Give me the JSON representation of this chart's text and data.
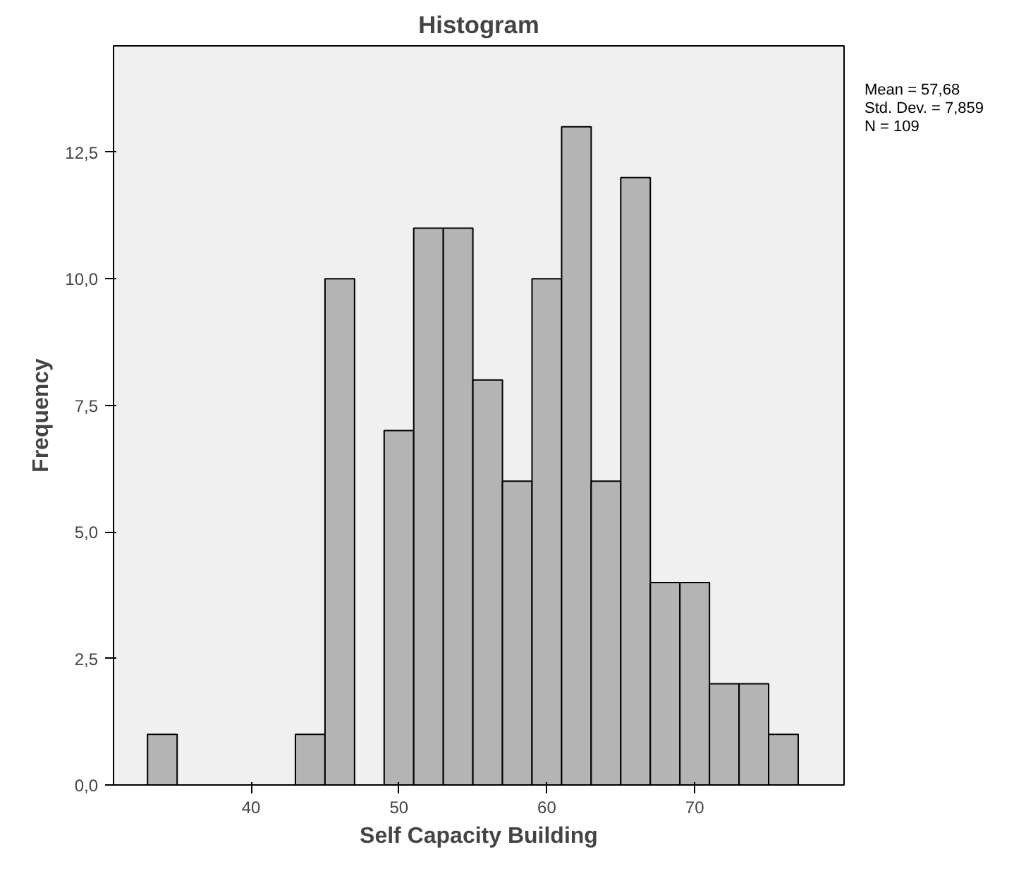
{
  "chart_data": {
    "type": "histogram",
    "title": "Histogram",
    "xlabel": "Self Capacity Building",
    "ylabel": "Frequency",
    "bins": [
      33,
      35,
      37,
      39,
      41,
      43,
      45,
      47,
      49,
      51,
      53,
      55,
      57,
      59,
      61,
      63,
      65,
      67,
      69,
      71,
      73,
      75,
      77
    ],
    "values": [
      1,
      0,
      0,
      0,
      0,
      1,
      10,
      0,
      7,
      11,
      11,
      8,
      6,
      10,
      13,
      6,
      12,
      4,
      4,
      2,
      2,
      1
    ],
    "color": "#b4b4b4",
    "xlim": [
      30.7,
      80.1
    ],
    "ylim": [
      0,
      14.6
    ],
    "xticks": [
      40,
      50,
      60,
      70
    ],
    "yticks": [
      {
        "value": 0,
        "label": "0,0"
      },
      {
        "value": 2.5,
        "label": "2,5"
      },
      {
        "value": 5,
        "label": "5,0"
      },
      {
        "value": 7.5,
        "label": "7,5"
      },
      {
        "value": 10,
        "label": "10,0"
      },
      {
        "value": 12.5,
        "label": "12,5"
      }
    ],
    "annotations": [
      "Mean = 57,68",
      "Std. Dev. = 7,859",
      "N = 109"
    ],
    "grid": false
  }
}
